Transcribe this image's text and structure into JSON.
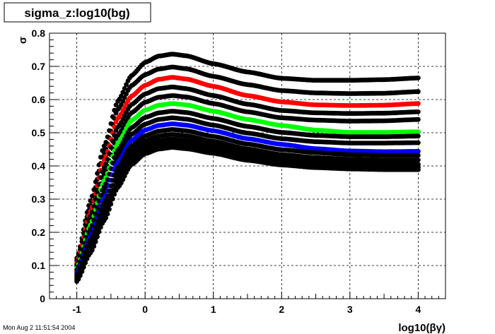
{
  "canvas_title": "sigma_z:log10(bg)",
  "timestamp": "Mon Aug  2 11:51:54 2004",
  "chart_data": {
    "type": "scatter",
    "title": "sigma_z:log10(bg)",
    "xlabel": "log10(βγ)",
    "ylabel": "σ",
    "xlim": [
      -1.4,
      4.4
    ],
    "ylim": [
      0,
      0.8
    ],
    "x_ticks": [
      "-1",
      "0",
      "1",
      "2",
      "3",
      "4"
    ],
    "y_ticks": [
      "0",
      "0.1",
      "0.2",
      "0.3",
      "0.4",
      "0.5",
      "0.6",
      "0.7",
      "0.8"
    ],
    "grid": true,
    "legend": "none",
    "series": [
      {
        "color": "#000000",
        "values": [
          [
            -1.0,
            0.122
          ],
          [
            -0.8,
            0.295
          ],
          [
            -0.6,
            0.46
          ],
          [
            -0.4,
            0.595
          ],
          [
            -0.2,
            0.672
          ],
          [
            0.0,
            0.712
          ],
          [
            0.2,
            0.731
          ],
          [
            0.4,
            0.737
          ],
          [
            0.6,
            0.732
          ],
          [
            1.0,
            0.708
          ],
          [
            1.5,
            0.683
          ],
          [
            2.0,
            0.664
          ],
          [
            2.5,
            0.658
          ],
          [
            3.0,
            0.658
          ],
          [
            3.5,
            0.66
          ],
          [
            4.0,
            0.665
          ]
        ]
      },
      {
        "color": "#000000",
        "values": [
          [
            -1.0,
            0.115
          ],
          [
            -0.8,
            0.28
          ],
          [
            -0.6,
            0.44
          ],
          [
            -0.4,
            0.57
          ],
          [
            -0.2,
            0.642
          ],
          [
            0.0,
            0.675
          ],
          [
            0.2,
            0.692
          ],
          [
            0.4,
            0.698
          ],
          [
            0.6,
            0.693
          ],
          [
            1.0,
            0.67
          ],
          [
            1.5,
            0.645
          ],
          [
            2.0,
            0.627
          ],
          [
            2.5,
            0.62
          ],
          [
            3.0,
            0.618
          ],
          [
            3.5,
            0.619
          ],
          [
            4.0,
            0.624
          ]
        ]
      },
      {
        "color": "#ff0000",
        "values": [
          [
            -1.0,
            0.108
          ],
          [
            -0.8,
            0.263
          ],
          [
            -0.6,
            0.418
          ],
          [
            -0.4,
            0.543
          ],
          [
            -0.2,
            0.61
          ],
          [
            0.0,
            0.643
          ],
          [
            0.2,
            0.661
          ],
          [
            0.4,
            0.667
          ],
          [
            0.6,
            0.662
          ],
          [
            1.0,
            0.64
          ],
          [
            1.5,
            0.612
          ],
          [
            2.0,
            0.593
          ],
          [
            2.5,
            0.584
          ],
          [
            3.0,
            0.582
          ],
          [
            3.5,
            0.583
          ],
          [
            4.0,
            0.588
          ]
        ]
      },
      {
        "color": "#000000",
        "values": [
          [
            -1.0,
            0.102
          ],
          [
            -0.8,
            0.248
          ],
          [
            -0.6,
            0.395
          ],
          [
            -0.4,
            0.517
          ],
          [
            -0.2,
            0.585
          ],
          [
            0.0,
            0.617
          ],
          [
            0.2,
            0.633
          ],
          [
            0.4,
            0.638
          ],
          [
            0.6,
            0.633
          ],
          [
            1.0,
            0.612
          ],
          [
            1.5,
            0.586
          ],
          [
            2.0,
            0.567
          ],
          [
            2.5,
            0.56
          ],
          [
            3.0,
            0.558
          ],
          [
            3.5,
            0.559
          ],
          [
            4.0,
            0.563
          ]
        ]
      },
      {
        "color": "#000000",
        "values": [
          [
            -1.0,
            0.097
          ],
          [
            -0.8,
            0.235
          ],
          [
            -0.6,
            0.375
          ],
          [
            -0.4,
            0.492
          ],
          [
            -0.2,
            0.56
          ],
          [
            0.0,
            0.592
          ],
          [
            0.2,
            0.607
          ],
          [
            0.4,
            0.612
          ],
          [
            0.6,
            0.608
          ],
          [
            1.0,
            0.588
          ],
          [
            1.5,
            0.563
          ],
          [
            2.0,
            0.545
          ],
          [
            2.5,
            0.538
          ],
          [
            3.0,
            0.535
          ],
          [
            3.5,
            0.536
          ],
          [
            4.0,
            0.54
          ]
        ]
      },
      {
        "color": "#00ff00",
        "values": [
          [
            -1.0,
            0.092
          ],
          [
            -0.8,
            0.222
          ],
          [
            -0.6,
            0.355
          ],
          [
            -0.4,
            0.468
          ],
          [
            -0.2,
            0.537
          ],
          [
            0.0,
            0.568
          ],
          [
            0.2,
            0.583
          ],
          [
            0.4,
            0.588
          ],
          [
            0.6,
            0.584
          ],
          [
            1.0,
            0.565
          ],
          [
            1.5,
            0.54
          ],
          [
            2.0,
            0.522
          ],
          [
            2.5,
            0.508
          ],
          [
            3.0,
            0.501
          ],
          [
            3.5,
            0.501
          ],
          [
            4.0,
            0.503
          ]
        ]
      },
      {
        "color": "#000000",
        "values": [
          [
            -1.0,
            0.087
          ],
          [
            -0.8,
            0.21
          ],
          [
            -0.6,
            0.337
          ],
          [
            -0.4,
            0.447
          ],
          [
            -0.2,
            0.515
          ],
          [
            0.0,
            0.546
          ],
          [
            0.2,
            0.56
          ],
          [
            0.4,
            0.565
          ],
          [
            0.6,
            0.561
          ],
          [
            1.0,
            0.543
          ],
          [
            1.5,
            0.519
          ],
          [
            2.0,
            0.501
          ],
          [
            2.5,
            0.492
          ],
          [
            3.0,
            0.488
          ],
          [
            3.5,
            0.488
          ],
          [
            4.0,
            0.49
          ]
        ]
      },
      {
        "color": "#000000",
        "values": [
          [
            -1.0,
            0.082
          ],
          [
            -0.8,
            0.198
          ],
          [
            -0.6,
            0.32
          ],
          [
            -0.4,
            0.428
          ],
          [
            -0.2,
            0.495
          ],
          [
            0.0,
            0.526
          ],
          [
            0.2,
            0.54
          ],
          [
            0.4,
            0.545
          ],
          [
            0.6,
            0.541
          ],
          [
            1.0,
            0.523
          ],
          [
            1.5,
            0.499
          ],
          [
            2.0,
            0.482
          ],
          [
            2.5,
            0.473
          ],
          [
            3.0,
            0.469
          ],
          [
            3.5,
            0.469
          ],
          [
            4.0,
            0.47
          ]
        ]
      },
      {
        "color": "#0000ff",
        "values": [
          [
            -1.0,
            0.077
          ],
          [
            -0.8,
            0.187
          ],
          [
            -0.6,
            0.303
          ],
          [
            -0.4,
            0.41
          ],
          [
            -0.2,
            0.477
          ],
          [
            0.0,
            0.508
          ],
          [
            0.2,
            0.522
          ],
          [
            0.4,
            0.527
          ],
          [
            0.6,
            0.523
          ],
          [
            1.0,
            0.506
          ],
          [
            1.5,
            0.482
          ],
          [
            2.0,
            0.465
          ],
          [
            2.5,
            0.452
          ],
          [
            3.0,
            0.445
          ],
          [
            3.5,
            0.443
          ],
          [
            4.0,
            0.444
          ]
        ]
      },
      {
        "color": "#000000",
        "values": [
          [
            -1.0,
            0.072
          ],
          [
            -0.8,
            0.176
          ],
          [
            -0.6,
            0.288
          ],
          [
            -0.4,
            0.393
          ],
          [
            -0.2,
            0.46
          ],
          [
            0.0,
            0.491
          ],
          [
            0.2,
            0.505
          ],
          [
            0.4,
            0.51
          ],
          [
            0.6,
            0.506
          ],
          [
            1.0,
            0.489
          ],
          [
            1.5,
            0.466
          ],
          [
            2.0,
            0.449
          ],
          [
            2.5,
            0.44
          ],
          [
            3.0,
            0.434
          ],
          [
            3.5,
            0.432
          ],
          [
            4.0,
            0.432
          ]
        ]
      },
      {
        "color": "#000000",
        "values": [
          [
            -1.0,
            0.067
          ],
          [
            -0.8,
            0.166
          ],
          [
            -0.6,
            0.274
          ],
          [
            -0.4,
            0.377
          ],
          [
            -0.2,
            0.444
          ],
          [
            0.0,
            0.476
          ],
          [
            0.2,
            0.49
          ],
          [
            0.4,
            0.495
          ],
          [
            0.6,
            0.491
          ],
          [
            1.0,
            0.474
          ],
          [
            1.5,
            0.451
          ],
          [
            2.0,
            0.434
          ],
          [
            2.5,
            0.425
          ],
          [
            3.0,
            0.42
          ],
          [
            3.5,
            0.418
          ],
          [
            4.0,
            0.418
          ]
        ]
      },
      {
        "color": "#000000",
        "values": [
          [
            -1.0,
            0.062
          ],
          [
            -0.8,
            0.156
          ],
          [
            -0.6,
            0.26
          ],
          [
            -0.4,
            0.362
          ],
          [
            -0.2,
            0.43
          ],
          [
            0.0,
            0.462
          ],
          [
            0.2,
            0.476
          ],
          [
            0.4,
            0.481
          ],
          [
            0.6,
            0.477
          ],
          [
            1.0,
            0.461
          ],
          [
            1.5,
            0.438
          ],
          [
            2.0,
            0.422
          ],
          [
            2.5,
            0.412
          ],
          [
            3.0,
            0.407
          ],
          [
            3.5,
            0.405
          ],
          [
            4.0,
            0.405
          ]
        ]
      },
      {
        "color": "#000000",
        "values": [
          [
            -1.0,
            0.057
          ],
          [
            -0.8,
            0.147
          ],
          [
            -0.6,
            0.247
          ],
          [
            -0.4,
            0.348
          ],
          [
            -0.2,
            0.416
          ],
          [
            0.0,
            0.449
          ],
          [
            0.2,
            0.463
          ],
          [
            0.4,
            0.468
          ],
          [
            0.6,
            0.464
          ],
          [
            1.0,
            0.449
          ],
          [
            1.5,
            0.427
          ],
          [
            2.0,
            0.412
          ],
          [
            2.5,
            0.403
          ],
          [
            3.0,
            0.398
          ],
          [
            3.5,
            0.396
          ],
          [
            4.0,
            0.396
          ]
        ]
      },
      {
        "color": "#000000",
        "values": [
          [
            -1.0,
            0.052
          ],
          [
            -0.8,
            0.138
          ],
          [
            -0.6,
            0.235
          ],
          [
            -0.4,
            0.335
          ],
          [
            -0.2,
            0.404
          ],
          [
            0.0,
            0.437
          ],
          [
            0.2,
            0.451
          ],
          [
            0.4,
            0.456
          ],
          [
            0.6,
            0.452
          ],
          [
            1.0,
            0.438
          ],
          [
            1.5,
            0.417
          ],
          [
            2.0,
            0.403
          ],
          [
            2.5,
            0.395
          ],
          [
            3.0,
            0.391
          ],
          [
            3.5,
            0.389
          ],
          [
            4.0,
            0.389
          ]
        ]
      }
    ]
  }
}
